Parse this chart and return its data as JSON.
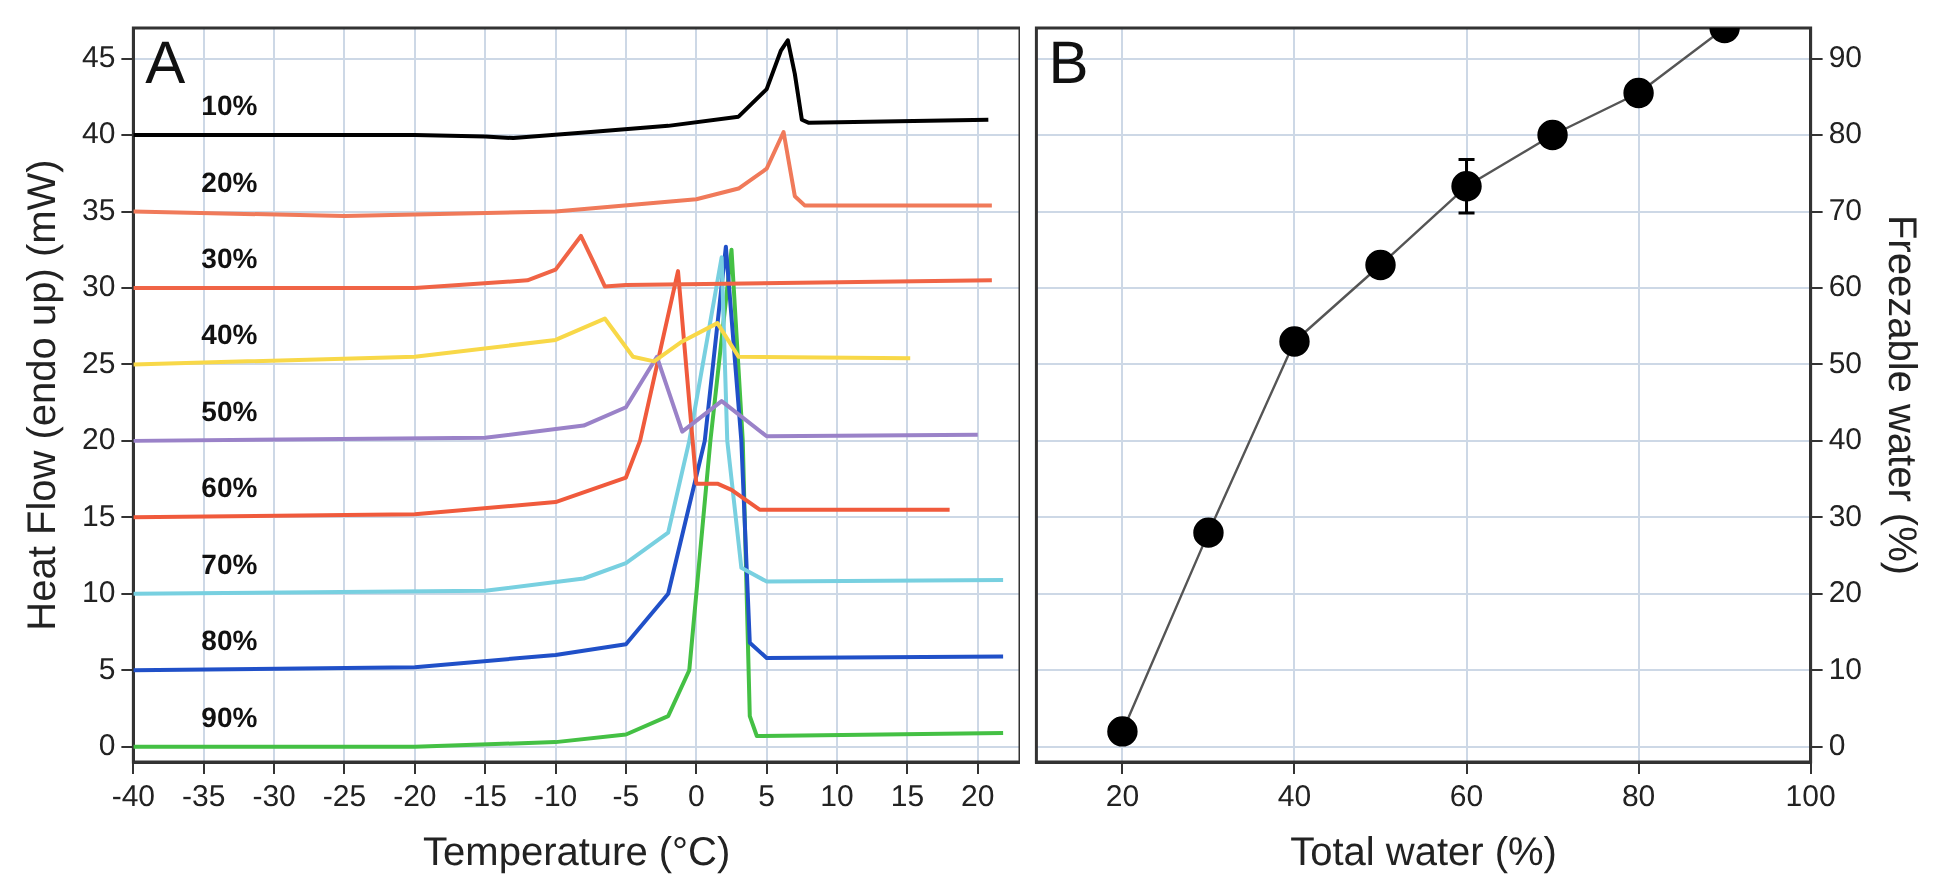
{
  "chart_data": [
    {
      "type": "line",
      "xlabel": "Temperature (°C)",
      "ylabel": "Heat Flow (endo up) (mW)",
      "annotations": [
        "A"
      ],
      "xlim": [
        -40,
        23
      ],
      "xticks": [
        -40,
        -35,
        -30,
        -25,
        -20,
        -15,
        -10,
        -5,
        0,
        5,
        10,
        15,
        20
      ],
      "ylim": [
        -1,
        47
      ],
      "yticks": [
        0,
        5,
        10,
        15,
        20,
        25,
        30,
        35,
        40,
        45
      ],
      "grid": true,
      "legend": false,
      "marker": "none",
      "line_style": "solid",
      "series": [
        {
          "name": "10%",
          "color": "#000000",
          "x": [
            -40,
            -20,
            -15,
            -13,
            -7.5,
            -2,
            3,
            5,
            6,
            6.5,
            7,
            7.5,
            8,
            20.75
          ],
          "values": [
            40,
            40,
            39.9,
            39.8,
            40.2,
            40.6,
            41.2,
            43,
            45.5,
            46.2,
            44,
            41,
            40.8,
            41
          ]
        },
        {
          "name": "20%",
          "color": "#f07a5a",
          "x": [
            -40,
            -25,
            -10,
            0,
            3,
            5,
            6.2,
            7,
            7.7,
            21
          ],
          "values": [
            35,
            34.7,
            35,
            35.8,
            36.5,
            37.8,
            40.2,
            36,
            35.4,
            35.4
          ]
        },
        {
          "name": "30%",
          "color": "#f06446",
          "x": [
            -40,
            -20,
            -12,
            -10,
            -8.2,
            -7.2,
            -6.5,
            -5,
            21
          ],
          "values": [
            30,
            30,
            30.5,
            31.2,
            33.4,
            31.5,
            30.1,
            30.2,
            30.5
          ]
        },
        {
          "name": "40%",
          "color": "#f8d848",
          "x": [
            -40,
            -20,
            -10,
            -6.5,
            -4.5,
            -3,
            -1,
            1.5,
            3,
            15.2
          ],
          "values": [
            25,
            25.5,
            26.6,
            28,
            25.5,
            25.2,
            26.5,
            27.7,
            25.5,
            25.4
          ]
        },
        {
          "name": "50%",
          "color": "#9a82c8",
          "x": [
            -40,
            -15,
            -8,
            -5,
            -2.8,
            -1,
            1.8,
            5,
            20
          ],
          "values": [
            20,
            20.2,
            21,
            22.2,
            25.5,
            20.6,
            22.6,
            20.3,
            20.4
          ]
        },
        {
          "name": "60%",
          "color": "#f05a3c",
          "x": [
            -40,
            -20,
            -10,
            -5,
            -4,
            -1.3,
            0,
            1.5,
            2.5,
            4.5,
            18
          ],
          "values": [
            15,
            15.2,
            16,
            17.6,
            20,
            31.1,
            17.2,
            17.2,
            16.8,
            15.5,
            15.5
          ]
        },
        {
          "name": "70%",
          "color": "#78d0e0",
          "x": [
            -40,
            -15,
            -8,
            -5,
            -2,
            -0.5,
            1.8,
            2.2,
            3.2,
            5,
            21.8
          ],
          "values": [
            10,
            10.2,
            11,
            12,
            14,
            20,
            32,
            20,
            11.7,
            10.8,
            10.9
          ]
        },
        {
          "name": "80%",
          "color": "#2050c8",
          "x": [
            -40,
            -20,
            -10,
            -5,
            -2,
            0.6,
            2.1,
            3.2,
            3.8,
            5,
            21.8
          ],
          "values": [
            5,
            5.2,
            6,
            6.7,
            10,
            20,
            32.7,
            20,
            6.8,
            5.8,
            5.9
          ]
        },
        {
          "name": "90%",
          "color": "#44c044",
          "x": [
            -40,
            -20,
            -10,
            -5,
            -2,
            -0.5,
            1,
            2.5,
            3.3,
            3.8,
            4.3,
            21.8
          ],
          "values": [
            0,
            0,
            0.3,
            0.8,
            2,
            5,
            20,
            32.5,
            20,
            2,
            0.7,
            0.9
          ]
        }
      ]
    },
    {
      "type": "line",
      "xlabel": "Total water (%)",
      "y2label": "Freezable water (%)",
      "annotations": [
        "B"
      ],
      "xlim": [
        10,
        100
      ],
      "xticks": [
        20,
        40,
        60,
        80,
        100
      ],
      "y2lim": [
        -2,
        94
      ],
      "y2ticks": [
        0,
        10,
        20,
        30,
        40,
        50,
        60,
        70,
        80,
        90
      ],
      "grid": true,
      "legend": false,
      "marker": "circle",
      "line_style": "solid",
      "series": [
        {
          "color": "#000000",
          "axis": "y2",
          "x": [
            20,
            30,
            40,
            50,
            60,
            70,
            80,
            90
          ],
          "values": [
            2,
            28,
            53,
            63,
            73.3,
            80,
            85.5,
            94
          ],
          "errors": [
            null,
            null,
            null,
            null,
            3.5,
            null,
            1.5,
            null
          ]
        }
      ]
    }
  ]
}
